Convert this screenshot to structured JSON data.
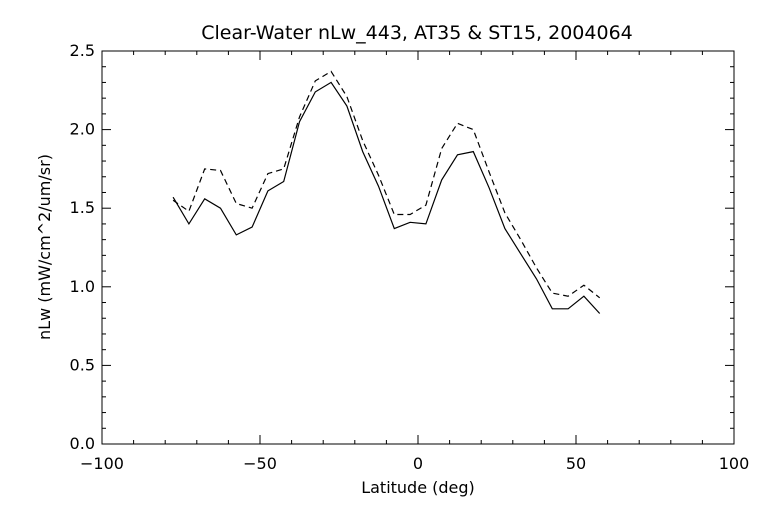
{
  "chart_data": {
    "type": "line",
    "title": "Clear-Water nLw_443, AT35 & ST15, 2004064",
    "xlabel": "Latitude (deg)",
    "ylabel": "nLw (mW/cm^2/um/sr)",
    "xlim": [
      -100,
      100
    ],
    "ylim": [
      0.0,
      2.5
    ],
    "x_ticks": [
      -100,
      -50,
      0,
      50,
      100
    ],
    "x_tick_labels": [
      "−100",
      "−50",
      "0",
      "50",
      "100"
    ],
    "y_ticks": [
      0.0,
      0.5,
      1.0,
      1.5,
      2.0,
      2.5
    ],
    "y_tick_labels": [
      "0.0",
      "0.5",
      "1.0",
      "1.5",
      "2.0",
      "2.5"
    ],
    "grid": false,
    "series": [
      {
        "style": "solid",
        "x": [
          -77.5,
          -72.5,
          -67.5,
          -62.5,
          -57.5,
          -52.5,
          -47.5,
          -42.5,
          -37.5,
          -32.5,
          -27.5,
          -22.5,
          -17.5,
          -12.5,
          -7.5,
          -2.5,
          2.5,
          7.5,
          12.5,
          17.5,
          22.5,
          27.5,
          32.5,
          37.5,
          42.5,
          47.5,
          52.5,
          57.5
        ],
        "y": [
          1.57,
          1.4,
          1.56,
          1.5,
          1.33,
          1.38,
          1.61,
          1.67,
          2.05,
          2.24,
          2.3,
          2.15,
          1.86,
          1.64,
          1.37,
          1.41,
          1.4,
          1.68,
          1.84,
          1.86,
          1.63,
          1.37,
          1.21,
          1.05,
          0.86,
          0.86,
          0.94,
          0.83
        ]
      },
      {
        "style": "dashed",
        "x": [
          -77.5,
          -72.5,
          -67.5,
          -62.5,
          -57.5,
          -52.5,
          -47.5,
          -42.5,
          -37.5,
          -32.5,
          -27.5,
          -22.5,
          -17.5,
          -12.5,
          -7.5,
          -2.5,
          2.5,
          7.5,
          12.5,
          17.5,
          22.5,
          27.5,
          32.5,
          37.5,
          42.5,
          47.5,
          52.5,
          57.5
        ],
        "y": [
          1.55,
          1.48,
          1.75,
          1.74,
          1.53,
          1.5,
          1.72,
          1.75,
          2.08,
          2.31,
          2.37,
          2.21,
          1.93,
          1.71,
          1.46,
          1.46,
          1.52,
          1.88,
          2.04,
          2.0,
          1.73,
          1.47,
          1.3,
          1.12,
          0.96,
          0.94,
          1.01,
          0.93
        ]
      }
    ]
  }
}
